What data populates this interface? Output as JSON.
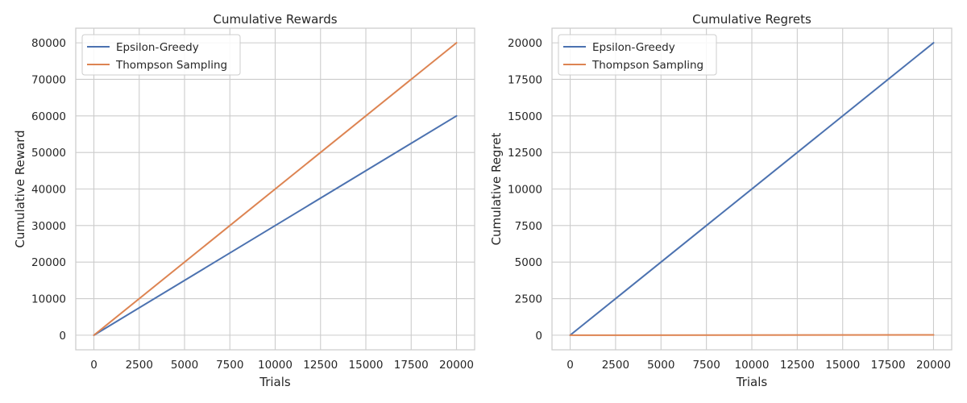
{
  "chart_data": [
    {
      "type": "line",
      "title": "Cumulative Rewards",
      "xlabel": "Trials",
      "ylabel": "Cumulative Reward",
      "xlim": [
        -1000,
        21000
      ],
      "ylim": [
        -4000,
        84000
      ],
      "xticks": [
        0,
        2500,
        5000,
        7500,
        10000,
        12500,
        15000,
        17500,
        20000
      ],
      "yticks": [
        0,
        10000,
        20000,
        30000,
        40000,
        50000,
        60000,
        70000,
        80000
      ],
      "grid": true,
      "legend_position": "top-left",
      "series": [
        {
          "name": "Epsilon-Greedy",
          "color": "#4c72b0",
          "x": [
            0,
            20000
          ],
          "y": [
            0,
            60000
          ]
        },
        {
          "name": "Thompson Sampling",
          "color": "#dd8452",
          "x": [
            0,
            20000
          ],
          "y": [
            0,
            80000
          ]
        }
      ]
    },
    {
      "type": "line",
      "title": "Cumulative Regrets",
      "xlabel": "Trials",
      "ylabel": "Cumulative Regret",
      "xlim": [
        -1000,
        21000
      ],
      "ylim": [
        -1000,
        21000
      ],
      "xticks": [
        0,
        2500,
        5000,
        7500,
        10000,
        12500,
        15000,
        17500,
        20000
      ],
      "yticks": [
        0,
        2500,
        5000,
        7500,
        10000,
        12500,
        15000,
        17500,
        20000
      ],
      "grid": true,
      "legend_position": "top-left",
      "series": [
        {
          "name": "Epsilon-Greedy",
          "color": "#4c72b0",
          "x": [
            0,
            20000
          ],
          "y": [
            0,
            20000
          ]
        },
        {
          "name": "Thompson Sampling",
          "color": "#dd8452",
          "x": [
            0,
            20000
          ],
          "y": [
            0,
            20
          ]
        }
      ]
    }
  ]
}
